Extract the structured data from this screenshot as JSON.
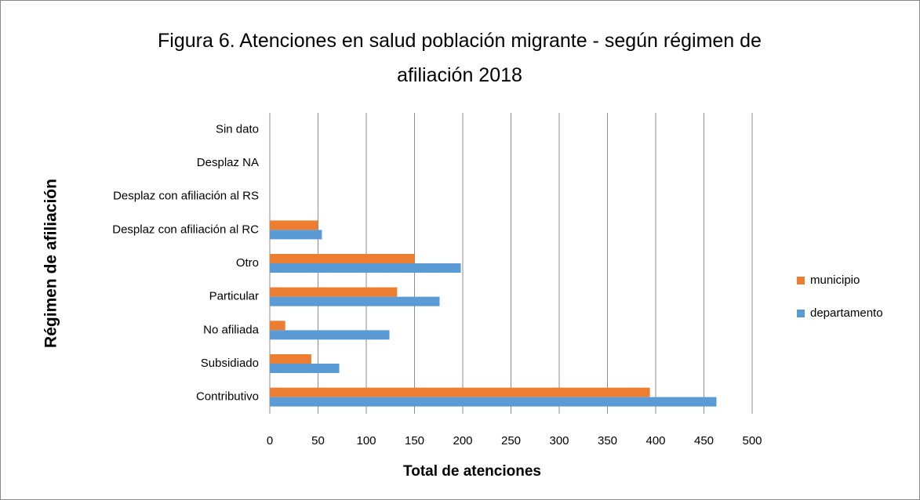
{
  "chart_data": {
    "type": "barh",
    "title": "Figura 6. Atenciones en salud población migrante - según régimen de afiliación 2018",
    "x_label": "Total de atenciones",
    "y_label": "Régimen de afiliación",
    "categories": [
      "Contributivo",
      "Subsidiado",
      "No afiliada",
      "Particular",
      "Otro",
      "Desplaz con afiliación al RC",
      "Desplaz con afiliación al RS",
      "Desplaz NA",
      "Sin dato"
    ],
    "series": [
      {
        "name": "municipio",
        "color": "#ed7d31",
        "values": [
          394,
          43,
          16,
          132,
          150,
          50,
          0,
          0,
          0
        ]
      },
      {
        "name": "departamento",
        "color": "#5b9bd5",
        "values": [
          463,
          72,
          124,
          176,
          198,
          54,
          0,
          0,
          0
        ]
      }
    ],
    "xlim": [
      0,
      500
    ],
    "xticks": [
      0,
      50,
      100,
      150,
      200,
      250,
      300,
      350,
      400,
      450,
      500
    ],
    "grid": true,
    "legend": "right"
  }
}
